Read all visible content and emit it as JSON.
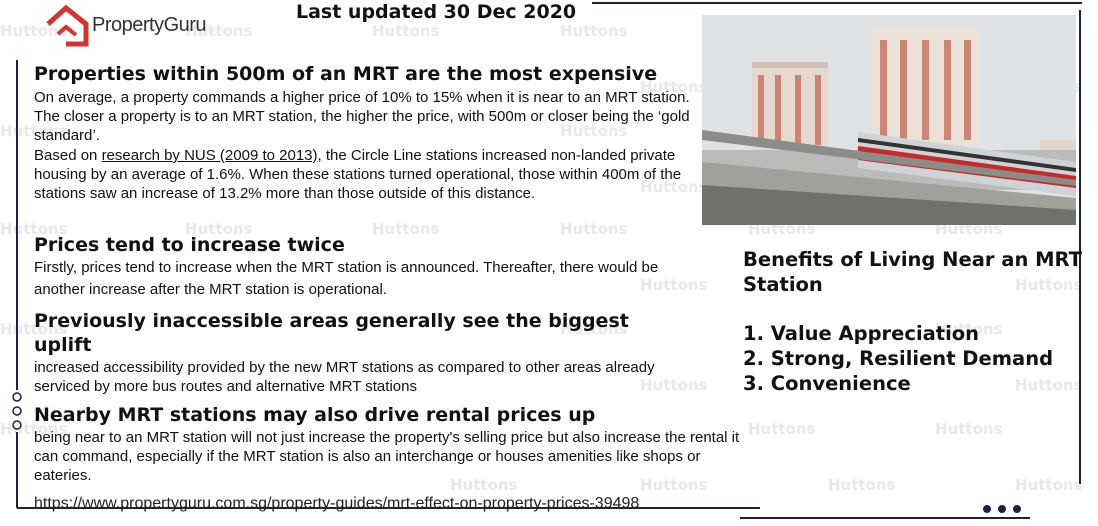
{
  "header": {
    "logo": "PropertyGuru",
    "updated": "Last updated 30 Dec 2020"
  },
  "watermark": "Huttons",
  "sections": [
    {
      "heading": "Properties within 500m of an MRT are the most expensive",
      "paragraphs": [
        {
          "text": "On average, a property commands a higher price of 10% to 15% when it is near to an MRT station. The closer a property is to an MRT station, the higher the price, with 500m or closer being the ‘gold standard’."
        },
        {
          "before": "Based on ",
          "link": "research by NUS (2009 to 2013),",
          "after": " the Circle Line stations increased non-landed private housing by an average of 1.6%. When these stations turned operational, those within 400m of the stations saw an increase of 13.2% more than those outside of this distance."
        }
      ]
    },
    {
      "heading": "Prices tend to increase twice",
      "paragraphs": [
        {
          "text": "Firstly, prices tend to increase when the MRT station is announced. Thereafter, there would be another increase after the MRT station is operational."
        }
      ]
    },
    {
      "heading": "Previously inaccessible areas generally see the biggest uplift",
      "paragraphs": [
        {
          "text": "increased accessibility provided by the new MRT stations as compared to other areas already serviced by more bus routes and alternative MRT stations"
        }
      ]
    },
    {
      "heading": "Nearby MRT stations may also drive rental prices up",
      "paragraphs": [
        {
          "text": "being near to an MRT station will not just increase the property's selling price but also increase the rental it can command, especially if the MRT station is also an interchange or houses amenities like shops or eateries."
        }
      ]
    }
  ],
  "source": "https://www.propertyguru.com.sg/property-guides/mrt-effect-on-property-prices-39498",
  "benefits": {
    "title": "Benefits of Living Near an MRT Station",
    "items": [
      "1. Value Appreciation",
      "2. Strong, Resilient Demand",
      "3. Convenience"
    ]
  }
}
